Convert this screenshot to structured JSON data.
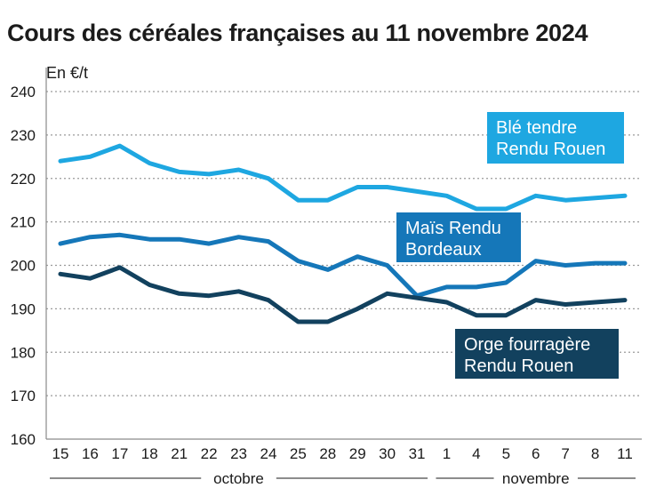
{
  "chart_data": {
    "type": "line",
    "title": "Cours des céréales françaises au 11 novembre 2024",
    "ylabel": "En €/t",
    "xlabel": "",
    "ylim": [
      160,
      240
    ],
    "yticks": [
      160,
      170,
      180,
      190,
      200,
      210,
      220,
      230,
      240
    ],
    "categories": [
      "15",
      "16",
      "17",
      "18",
      "21",
      "22",
      "23",
      "24",
      "25",
      "28",
      "29",
      "30",
      "31",
      "1",
      "4",
      "5",
      "6",
      "7",
      "8",
      "11"
    ],
    "months": [
      {
        "label": "octobre",
        "from": 0,
        "to": 12
      },
      {
        "label": "novembre",
        "from": 13,
        "to": 19
      }
    ],
    "grid": true,
    "series": [
      {
        "name": "Blé tendre Rendu Rouen",
        "lines": [
          "Blé tendre",
          "Rendu Rouen"
        ],
        "color": "#1ea7e1",
        "values": [
          224,
          225,
          227.5,
          223.5,
          221.5,
          221,
          222,
          220,
          215,
          215,
          218,
          218,
          217,
          216,
          213,
          213,
          216,
          215,
          215.5,
          216
        ]
      },
      {
        "name": "Maïs Rendu Bordeaux",
        "lines": [
          "Maïs Rendu",
          "Bordeaux"
        ],
        "color": "#1577b9",
        "values": [
          205,
          206.5,
          207,
          206,
          206,
          205,
          206.5,
          205.5,
          201,
          199,
          202,
          200,
          193,
          195,
          195,
          196,
          201,
          200,
          200.5,
          200.5
        ]
      },
      {
        "name": "Orge fourragère Rendu Rouen",
        "lines": [
          "Orge fourragère",
          "Rendu Rouen"
        ],
        "color": "#12415e",
        "values": [
          198,
          197,
          199.5,
          195.5,
          193.5,
          193,
          194,
          192,
          187,
          187,
          190,
          193.5,
          192.5,
          191.5,
          188.5,
          188.5,
          192,
          191,
          191.5,
          192
        ]
      }
    ]
  }
}
